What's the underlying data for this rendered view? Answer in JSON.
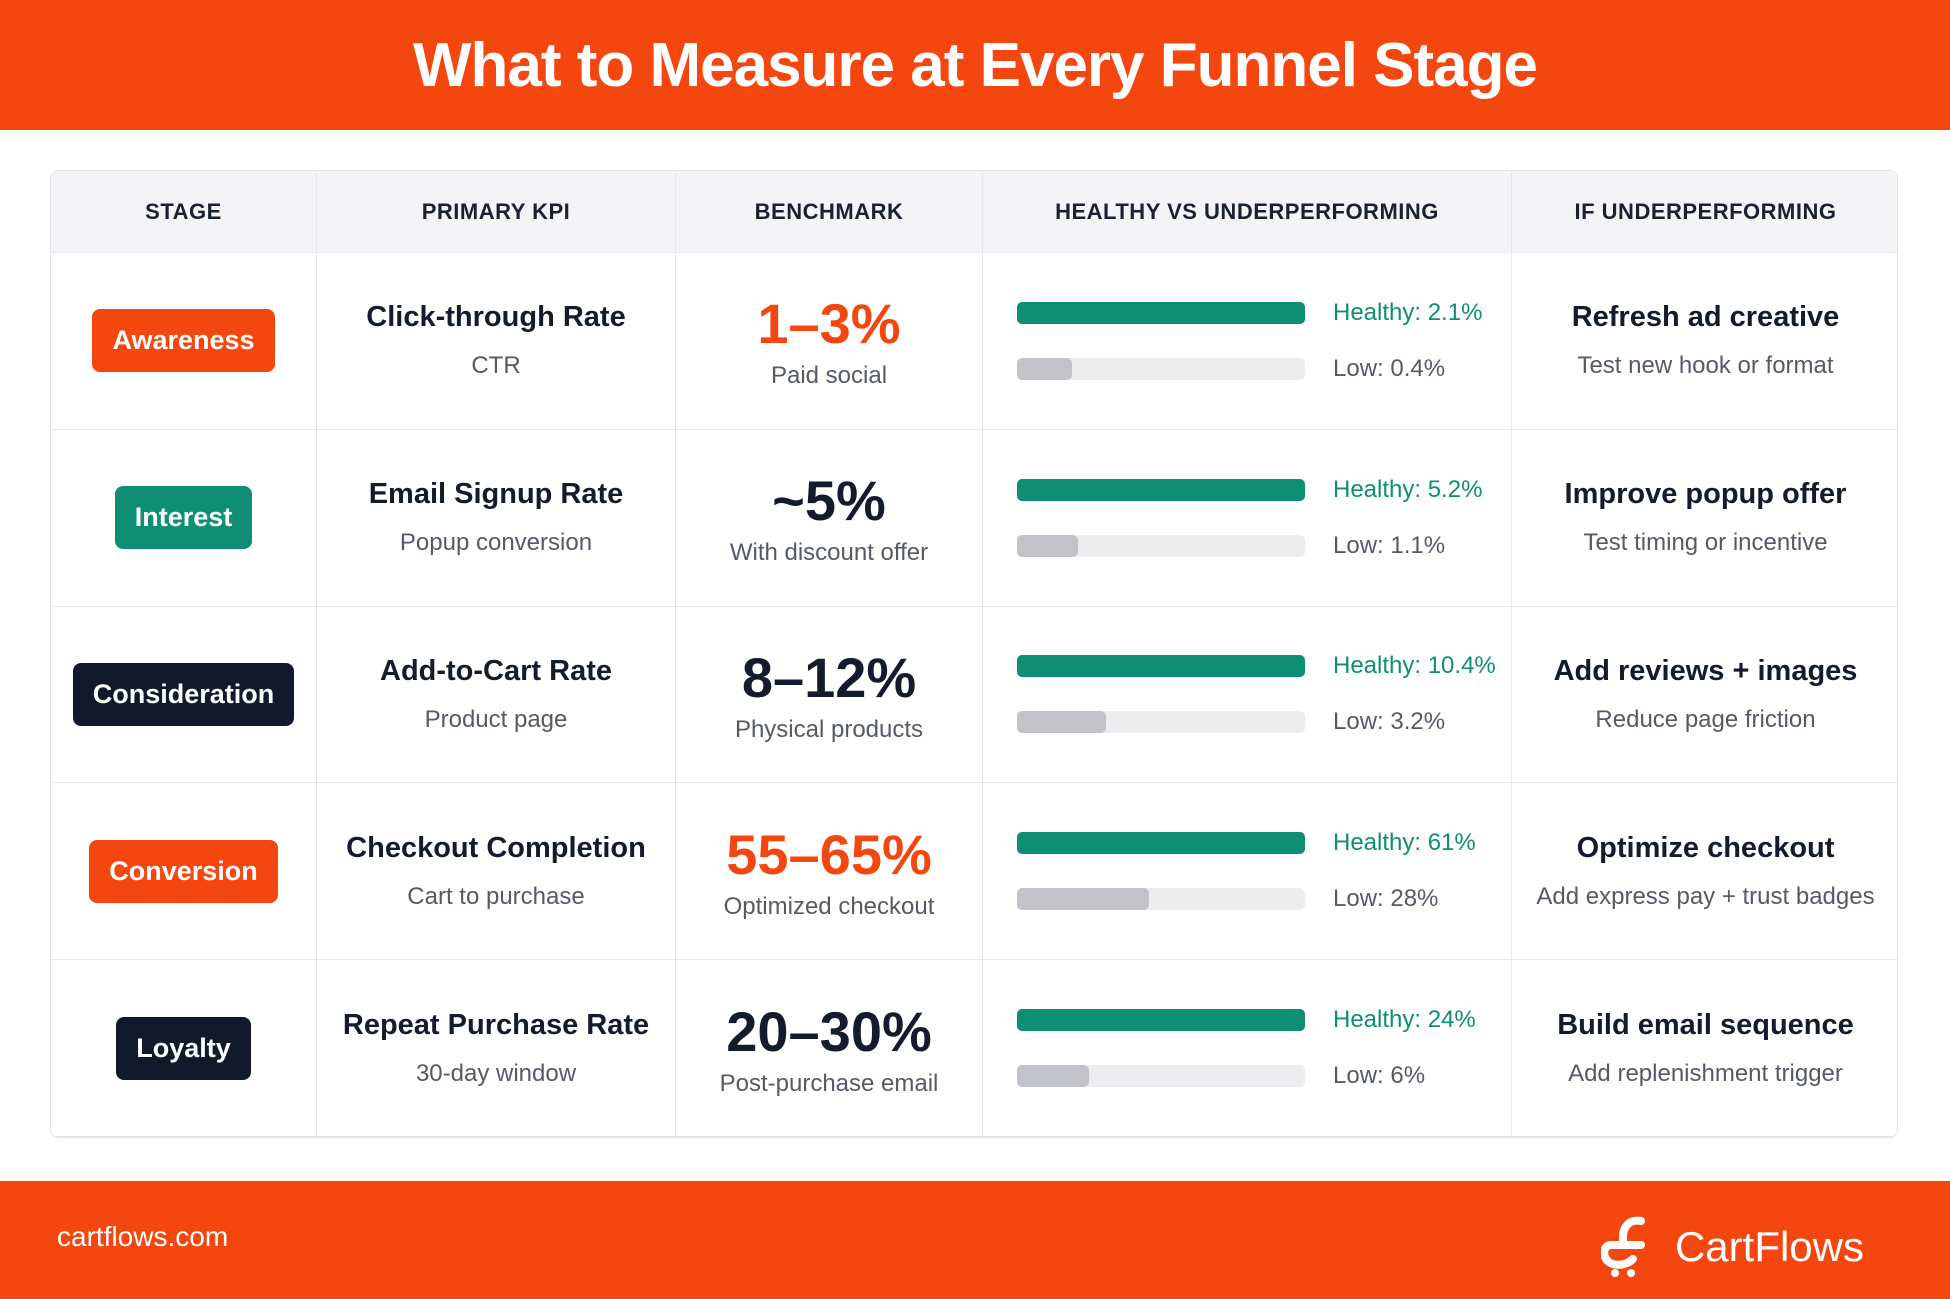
{
  "header": {
    "title": "What to Measure at Every Funnel Stage"
  },
  "table": {
    "columns": [
      "STAGE",
      "PRIMARY KPI",
      "BENCHMARK",
      "HEALTHY VS UNDERPERFORMING",
      "IF UNDERPERFORMING"
    ],
    "bar_colors": {
      "healthy": "#0e8f74",
      "low": "#c2c3c9",
      "track": "#ededef"
    },
    "rows": [
      {
        "stage": "Awareness",
        "badge_color": "#f4470f",
        "kpi": "Click-through Rate",
        "kpi_note": "CTR",
        "benchmark": "1–3%",
        "benchmark_color": "#f4470f",
        "benchmark_note": "Paid social",
        "healthy": {
          "value": 2.1,
          "label": "Healthy: 2.1%"
        },
        "low": {
          "value": 0.4,
          "label": "Low: 0.4%"
        },
        "action": "Refresh ad creative",
        "action_note": "Test new hook or format"
      },
      {
        "stage": "Interest",
        "badge_color": "#0e8f74",
        "kpi": "Email Signup Rate",
        "kpi_note": "Popup conversion",
        "benchmark": "~5%",
        "benchmark_color": "#141b2d",
        "benchmark_note": "With discount offer",
        "healthy": {
          "value": 5.2,
          "label": "Healthy: 5.2%"
        },
        "low": {
          "value": 1.1,
          "label": "Low: 1.1%"
        },
        "action": "Improve popup offer",
        "action_note": "Test timing or incentive"
      },
      {
        "stage": "Consideration",
        "badge_color": "#111a2b",
        "kpi": "Add-to-Cart Rate",
        "kpi_note": "Product page",
        "benchmark": "8–12%",
        "benchmark_color": "#141b2d",
        "benchmark_note": "Physical products",
        "healthy": {
          "value": 10.4,
          "label": "Healthy: 10.4%"
        },
        "low": {
          "value": 3.2,
          "label": "Low: 3.2%"
        },
        "action": "Add reviews + images",
        "action_note": "Reduce page friction"
      },
      {
        "stage": "Conversion",
        "badge_color": "#f4470f",
        "kpi": "Checkout Completion",
        "kpi_note": "Cart to purchase",
        "benchmark": "55–65%",
        "benchmark_color": "#f4470f",
        "benchmark_note": "Optimized checkout",
        "healthy": {
          "value": 61,
          "label": "Healthy: 61%"
        },
        "low": {
          "value": 28,
          "label": "Low: 28%"
        },
        "action": "Optimize checkout",
        "action_note": "Add express pay + trust badges"
      },
      {
        "stage": "Loyalty",
        "badge_color": "#111a2b",
        "kpi": "Repeat Purchase Rate",
        "kpi_note": "30-day window",
        "benchmark": "20–30%",
        "benchmark_color": "#141b2d",
        "benchmark_note": "Post-purchase email",
        "healthy": {
          "value": 24,
          "label": "Healthy: 24%"
        },
        "low": {
          "value": 6,
          "label": "Low: 6%"
        },
        "action": "Build email sequence",
        "action_note": "Add replenishment trigger"
      }
    ]
  },
  "footer": {
    "site": "cartflows.com",
    "brand": "CartFlows"
  }
}
